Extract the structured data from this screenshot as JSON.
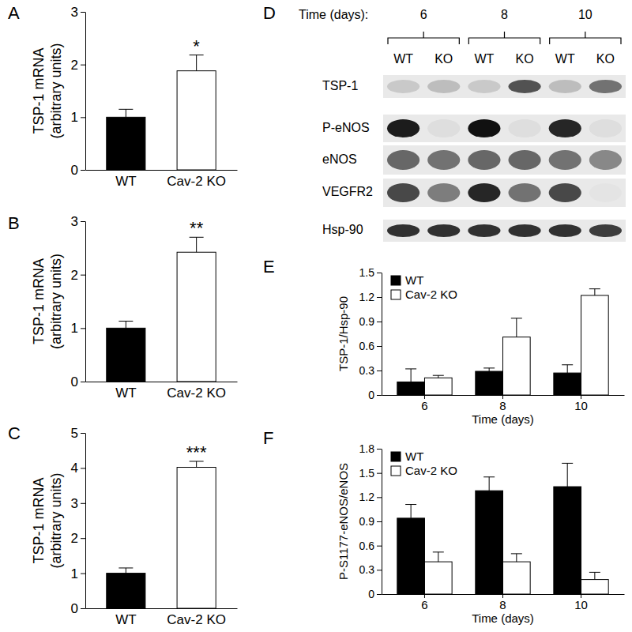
{
  "chart_data": [
    {
      "type": "bar",
      "panel": "A",
      "ylabel": [
        "TSP-1 mRNA",
        "(arbitrary units)"
      ],
      "categories": [
        "WT",
        "Cav-2 KO"
      ],
      "values": [
        1.0,
        1.88
      ],
      "errors": [
        0.15,
        0.3
      ],
      "colors": [
        "#000000",
        "#ffffff"
      ],
      "ylim": [
        0,
        3
      ],
      "yticks": [
        0,
        1,
        2,
        3
      ],
      "annotation": {
        "text": "*",
        "category": "Cav-2 KO"
      }
    },
    {
      "type": "bar",
      "panel": "B",
      "ylabel": [
        "TSP-1 mRNA",
        "(arbitrary units)"
      ],
      "categories": [
        "WT",
        "Cav-2 KO"
      ],
      "values": [
        1.0,
        2.42
      ],
      "errors": [
        0.13,
        0.28
      ],
      "colors": [
        "#000000",
        "#ffffff"
      ],
      "ylim": [
        0,
        3
      ],
      "yticks": [
        0,
        1,
        2,
        3
      ],
      "annotation": {
        "text": "**",
        "category": "Cav-2 KO"
      }
    },
    {
      "type": "bar",
      "panel": "C",
      "ylabel": [
        "TSP-1 mRNA",
        "(arbitrary units)"
      ],
      "categories": [
        "WT",
        "Cav-2 KO"
      ],
      "values": [
        1.0,
        4.02
      ],
      "errors": [
        0.15,
        0.17
      ],
      "colors": [
        "#000000",
        "#ffffff"
      ],
      "ylim": [
        0,
        5
      ],
      "yticks": [
        0,
        1,
        2,
        3,
        4,
        5
      ],
      "annotation": {
        "text": "***",
        "category": "Cav-2 KO"
      }
    },
    {
      "type": "bar",
      "panel": "E",
      "ylabel": "TSP-1/Hsp-90",
      "xlabel": "Time (days)",
      "categories": [
        6,
        8,
        10
      ],
      "legend": "upper left",
      "series": [
        {
          "name": "WT",
          "color": "#000000",
          "values": [
            0.16,
            0.29,
            0.27
          ],
          "errors": [
            0.16,
            0.04,
            0.1
          ]
        },
        {
          "name": "Cav-2 KO",
          "color": "#ffffff",
          "values": [
            0.21,
            0.71,
            1.22
          ],
          "errors": [
            0.03,
            0.23,
            0.08
          ]
        }
      ],
      "ylim": [
        0,
        1.5
      ],
      "yticks": [
        0,
        0.3,
        0.6,
        0.9,
        1.2,
        1.5
      ]
    },
    {
      "type": "bar",
      "panel": "F",
      "ylabel": "P-S1177-eNOS/eNOS",
      "xlabel": "Time (days)",
      "categories": [
        6,
        8,
        10
      ],
      "legend": "upper left",
      "series": [
        {
          "name": "WT",
          "color": "#000000",
          "values": [
            0.94,
            1.28,
            1.33
          ],
          "errors": [
            0.17,
            0.17,
            0.29
          ]
        },
        {
          "name": "Cav-2 KO",
          "color": "#ffffff",
          "values": [
            0.4,
            0.4,
            0.18
          ],
          "errors": [
            0.12,
            0.1,
            0.09
          ]
        }
      ],
      "ylim": [
        0,
        1.8
      ],
      "yticks": [
        0,
        0.3,
        0.6,
        0.9,
        1.2,
        1.5,
        1.8
      ]
    }
  ],
  "blot": {
    "panel": "D",
    "time_label": "Time (days):",
    "times": [
      "6",
      "8",
      "10"
    ],
    "lanes": [
      "WT",
      "KO",
      "WT",
      "KO",
      "WT",
      "KO"
    ],
    "rows": [
      {
        "label": "TSP-1",
        "intensity": [
          0.15,
          0.2,
          0.15,
          0.7,
          0.2,
          0.55
        ]
      },
      {
        "label": "P-eNOS",
        "intensity": [
          0.95,
          0.05,
          1.0,
          0.05,
          0.9,
          0.05
        ]
      },
      {
        "label": "eNOS",
        "intensity": [
          0.6,
          0.55,
          0.6,
          0.6,
          0.55,
          0.45
        ]
      },
      {
        "label": "VEGFR2",
        "intensity": [
          0.75,
          0.5,
          0.9,
          0.55,
          0.75,
          0.02
        ]
      },
      {
        "label": "Hsp-90",
        "intensity": [
          0.85,
          0.85,
          0.85,
          0.85,
          0.85,
          0.8
        ]
      }
    ]
  }
}
